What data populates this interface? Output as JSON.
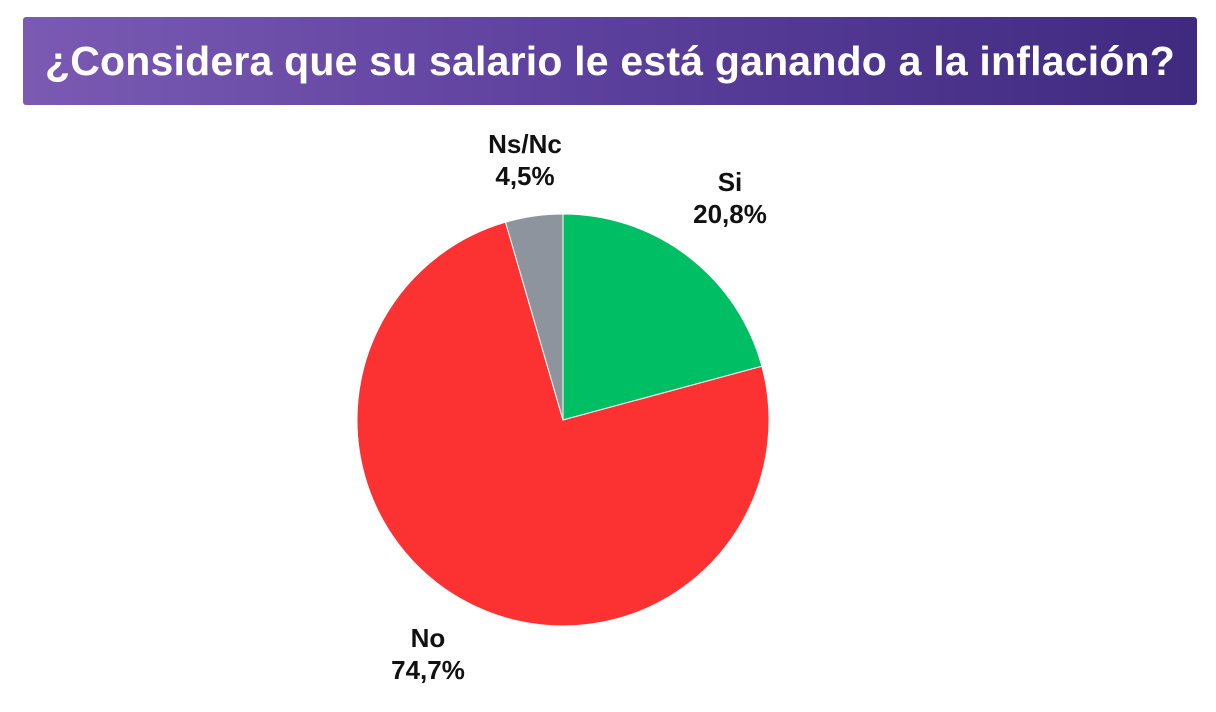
{
  "title": "¿Considera que su salario le está ganando a la inflación?",
  "colors": {
    "banner_start": "#7a5ab3",
    "banner_end": "#3f2a7f",
    "si": "#00be64",
    "no": "#fc3232",
    "nsnc": "#8e949e"
  },
  "chart_data": {
    "type": "pie",
    "title": "¿Considera que su salario le está ganando a la inflación?",
    "start_angle": "12 o'clock",
    "direction": "clockwise",
    "slices": [
      {
        "label": "Si",
        "value": 20.8,
        "value_label": "20,8%",
        "color": "#00be64"
      },
      {
        "label": "No",
        "value": 74.7,
        "value_label": "74,7%",
        "color": "#fc3232"
      },
      {
        "label": "Ns/Nc",
        "value": 4.5,
        "value_label": "4,5%",
        "color": "#8e949e"
      }
    ]
  }
}
